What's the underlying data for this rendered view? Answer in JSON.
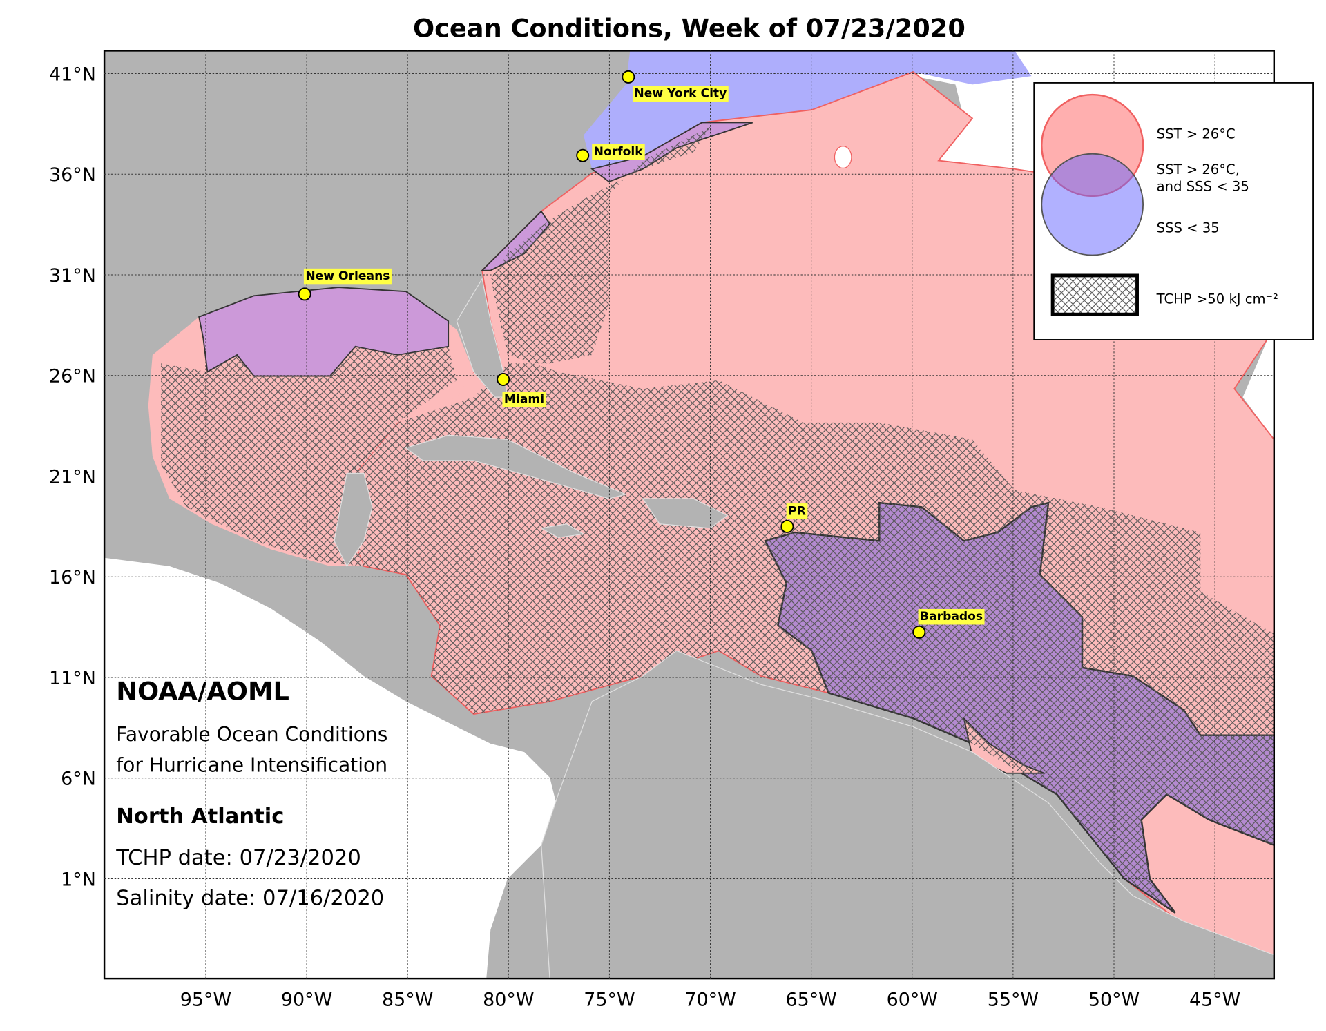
{
  "title": "Ocean Conditions, Week of 07/23/2020",
  "lat_labels": [
    "41°N",
    "36°N",
    "31°N",
    "26°N",
    "21°N",
    "16°N",
    "11°N",
    "6°N",
    "1°N"
  ],
  "lon_labels": [
    "95°W",
    "90°W",
    "85°W",
    "80°W",
    "75°W",
    "70°W",
    "65°W",
    "60°W",
    "55°W",
    "50°W",
    "45°W"
  ],
  "cities": [
    "New York City",
    "Norfolk",
    "New Orleans",
    "Miami",
    "PR",
    "Barbados"
  ],
  "legend": {
    "sst": "SST > 26°C",
    "both": [
      "SST > 26°C,",
      "and SSS < 35"
    ],
    "sss": "SSS < 35",
    "tchp": "TCHP >50 kJ cm⁻²"
  },
  "info": {
    "org": "NOAA/AOML",
    "description": [
      "Favorable Ocean Conditions",
      "for Hurricane Intensification"
    ],
    "region": "North Atlantic",
    "tchp_date": "TCHP date: 07/23/2020",
    "salinity_date": "Salinity date: 07/16/2020"
  }
}
